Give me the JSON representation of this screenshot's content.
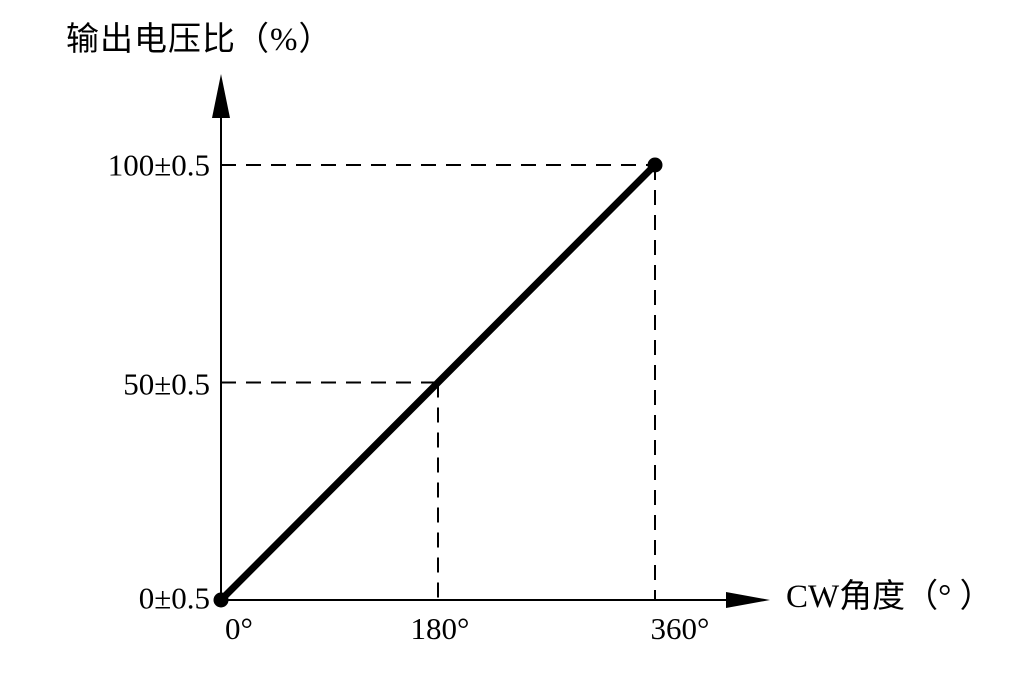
{
  "chart_data": {
    "type": "line",
    "title": "",
    "xlabel": "CW角度（° ）",
    "ylabel": "输出电压比（%）",
    "x": [
      0,
      180,
      360
    ],
    "y": [
      0,
      50,
      100
    ],
    "y_tolerance": 0.5,
    "x_tick_labels": [
      "0°",
      "180°",
      "360°"
    ],
    "y_tick_labels": [
      "0±0.5",
      "50±0.5",
      "100±0.5"
    ],
    "xlim": [
      0,
      360
    ],
    "ylim": [
      0,
      100
    ],
    "grid": false,
    "legend": null,
    "marker_points": [
      {
        "x": 0,
        "y": 0
      },
      {
        "x": 360,
        "y": 100
      }
    ],
    "guide_points": [
      {
        "x": 180,
        "y": 50
      },
      {
        "x": 360,
        "y": 100
      }
    ],
    "line_color": "#000000",
    "axis_color": "#000000",
    "background_color": "#ffffff"
  }
}
